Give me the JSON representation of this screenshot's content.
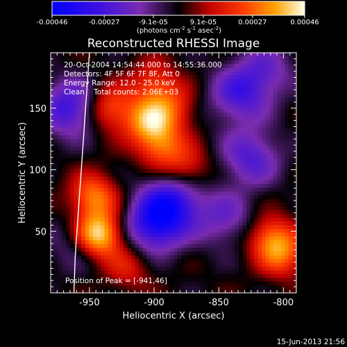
{
  "chart_data": {
    "type": "heatmap",
    "title": "Reconstructed RHESSI Image",
    "xlabel": "Heliocentric X (arcsec)",
    "ylabel": "Heliocentric Y (arcsec)",
    "xlim": [
      -980,
      -790
    ],
    "ylim": [
      0,
      195
    ],
    "xticks": [
      -950,
      -900,
      -850,
      -800
    ],
    "yticks": [
      50,
      100,
      150
    ],
    "colorbar": {
      "label": "(photons cm^-2 s^-1 asec^-2)",
      "range": [
        -0.00046,
        0.00046
      ],
      "ticks": [
        {
          "value": -0.00046,
          "label": "-0.00046"
        },
        {
          "value": -0.00027,
          "label": "-0.00027"
        },
        {
          "value": -9.1e-05,
          "label": "-9.1e-05"
        },
        {
          "value": 9.1e-05,
          "label": "9.1e-05"
        },
        {
          "value": 0.00027,
          "label": "0.00027"
        },
        {
          "value": 0.00046,
          "label": "0.00046"
        }
      ]
    },
    "annotations": {
      "time_range": "20-Oct-2004 14:54:44.000 to 14:55:36.000",
      "detectors": "Detectors: 4F 5F 6F 7F 8F, Att 0",
      "energy_range": "Energy Range: 12.0 - 25.0 keV",
      "clean_counts": "Clean    Total counts: 2.06E+03",
      "peak_position": "Position of Peak = [-941,46]"
    },
    "limb_curve": [
      [
        -962,
        0
      ],
      [
        -961,
        30
      ],
      [
        -959,
        60
      ],
      [
        -957,
        90
      ],
      [
        -955,
        120
      ],
      [
        -953,
        150
      ],
      [
        -951,
        180
      ],
      [
        -950,
        195
      ]
    ],
    "hot_spots": [
      {
        "x": -943,
        "y": 47,
        "value": 0.00046
      },
      {
        "x": -947,
        "y": 78,
        "value": 0.0003
      },
      {
        "x": -935,
        "y": 150,
        "value": 0.00025
      },
      {
        "x": -905,
        "y": 140,
        "value": 0.0003
      },
      {
        "x": -895,
        "y": 120,
        "value": 0.00026
      },
      {
        "x": -885,
        "y": 150,
        "value": 0.00018
      },
      {
        "x": -875,
        "y": 100,
        "value": 0.0002
      },
      {
        "x": -900,
        "y": 170,
        "value": 0.0002
      },
      {
        "x": -810,
        "y": 45,
        "value": 0.00026
      },
      {
        "x": -800,
        "y": 30,
        "value": 0.00022
      },
      {
        "x": -920,
        "y": 20,
        "value": 0.00015
      }
    ],
    "cold_spots": [
      {
        "x": -965,
        "y": 150,
        "value": -0.0003
      },
      {
        "x": -900,
        "y": 55,
        "value": -0.00035
      },
      {
        "x": -885,
        "y": 75,
        "value": -0.00032
      },
      {
        "x": -835,
        "y": 160,
        "value": -0.00024
      },
      {
        "x": -825,
        "y": 110,
        "value": -0.00024
      },
      {
        "x": -845,
        "y": 60,
        "value": -0.00018
      },
      {
        "x": -815,
        "y": 180,
        "value": -0.00018
      },
      {
        "x": -960,
        "y": 40,
        "value": -0.00012
      }
    ]
  },
  "footer": {
    "timestamp": "15-Jun-2013 21:56"
  }
}
